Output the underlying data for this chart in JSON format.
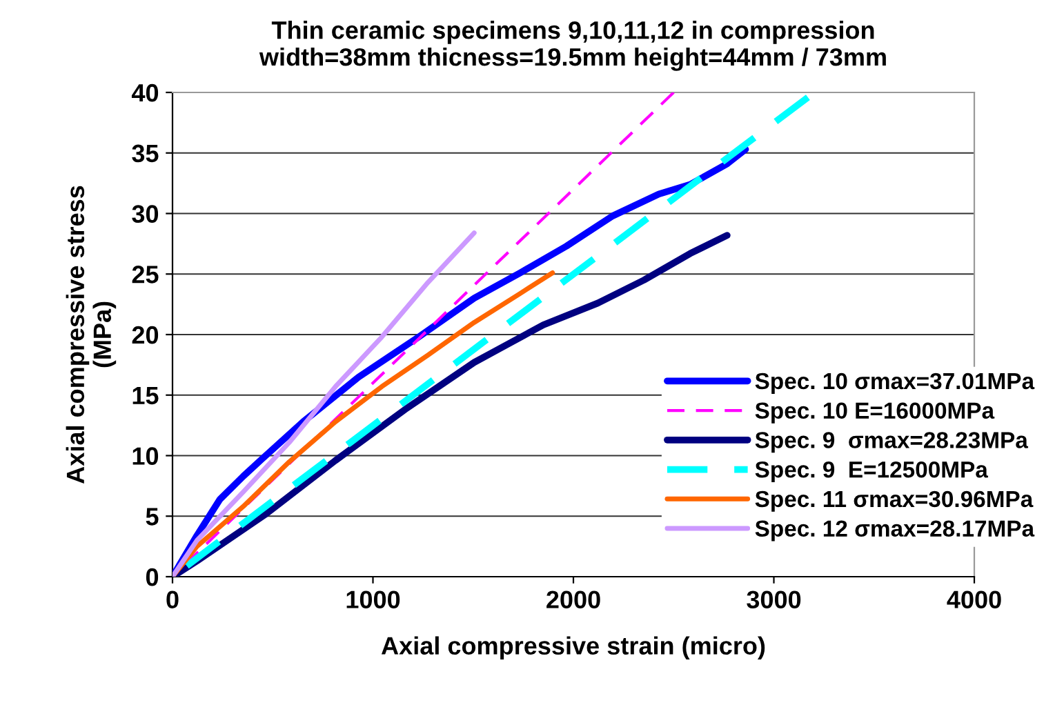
{
  "chart_data": {
    "type": "line",
    "title": "Thin ceramic specimens 9,10,11,12 in compression\nwidth=38mm thicness=19.5mm height=44mm / 73mm",
    "xlabel": "Axial compressive strain (micro)",
    "ylabel": "Axial compressive stress\n(MPa)",
    "xlim": [
      0,
      4000
    ],
    "xticks": [
      0,
      1000,
      2000,
      3000,
      4000
    ],
    "ylim": [
      0,
      40
    ],
    "yticks": [
      0,
      5,
      10,
      15,
      20,
      25,
      30,
      35,
      40
    ],
    "grid": "y",
    "legend": "bottom right",
    "line_style": "solid",
    "marker": "none",
    "series": [
      {
        "name": "Spec. 10 σmax=37.01MPa",
        "color": "#0000ff",
        "x": [
          0,
          122,
          237,
          353,
          445,
          652,
          929,
          1228,
          1505,
          1735,
          1965,
          2196,
          2426,
          2583,
          2767,
          2859
        ],
        "values": [
          0,
          3.4,
          6.4,
          8.3,
          9.7,
          12.8,
          16.5,
          19.8,
          23.0,
          25.1,
          27.3,
          29.8,
          31.6,
          32.4,
          34.1,
          35.3
        ]
      },
      {
        "name": "Spec. 10 E=16000MPa",
        "color": "#ff00ff",
        "line_style": "dashed",
        "x": [
          0,
          2500
        ],
        "values": [
          0,
          40
        ]
      },
      {
        "name": "Spec. 9  σmax=28.23MPa",
        "color": "#000080",
        "x": [
          0,
          122,
          468,
          813,
          1159,
          1505,
          1850,
          2122,
          2352,
          2583,
          2767
        ],
        "values": [
          0,
          1.3,
          5.2,
          9.6,
          13.8,
          17.7,
          20.8,
          22.6,
          24.5,
          26.7,
          28.2
        ]
      },
      {
        "name": "Spec. 9  E=12500MPa",
        "color": "#00ffff",
        "line_style": "dashed",
        "x": [
          0,
          3170
        ],
        "values": [
          0,
          39.6
        ]
      },
      {
        "name": "Spec. 11 σmax=30.96MPa",
        "color": "#ff6600",
        "x": [
          0,
          122,
          353,
          583,
          813,
          1044,
          1274,
          1505,
          1735,
          1896
        ],
        "values": [
          0,
          2.5,
          5.8,
          9.5,
          12.8,
          15.7,
          18.3,
          21.0,
          23.4,
          25.1
        ]
      },
      {
        "name": "Spec. 12 σmax=28.17MPa",
        "color": "#cc99ff",
        "x": [
          0,
          122,
          353,
          583,
          813,
          1044,
          1274,
          1505
        ],
        "values": [
          0,
          3.0,
          7.0,
          11.1,
          15.7,
          19.8,
          24.3,
          28.4
        ]
      }
    ]
  }
}
